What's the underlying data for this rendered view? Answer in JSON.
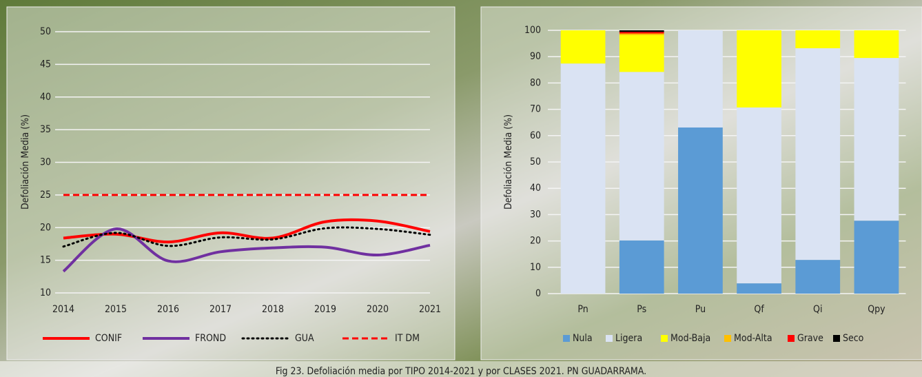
{
  "caption": "Fig 23. Defoliación media por TIPO 2014-2021 y por CLASES 2021. PN GUADARRAMA.",
  "chart_data": [
    {
      "type": "line",
      "y_label": "Defoliación Media (%)",
      "x": [
        2014,
        2015,
        2016,
        2017,
        2018,
        2019,
        2020,
        2021
      ],
      "xlim": [
        2014,
        2021
      ],
      "xticks": [
        2014,
        2015,
        2016,
        2017,
        2018,
        2019,
        2020,
        2021
      ],
      "ylim": [
        10,
        50
      ],
      "yticks": [
        10,
        15,
        20,
        25,
        30,
        35,
        40,
        45,
        50
      ],
      "grid": true,
      "series": [
        {
          "name": "CONIF",
          "color": "#ff0000",
          "style": "solid",
          "values": [
            18.4,
            19.0,
            17.8,
            19.2,
            18.4,
            20.9,
            21.0,
            19.4
          ]
        },
        {
          "name": "FROND",
          "color": "#7030a0",
          "style": "solid",
          "values": [
            13.3,
            19.8,
            14.9,
            16.3,
            16.9,
            17.0,
            15.8,
            17.3
          ]
        },
        {
          "name": "GUA",
          "color": "#000000",
          "style": "dotted",
          "values": [
            17.1,
            19.2,
            17.2,
            18.5,
            18.2,
            19.9,
            19.8,
            18.9
          ]
        },
        {
          "name": "IT DM",
          "color": "#ff0000",
          "style": "dashed",
          "values": [
            25,
            25,
            25,
            25,
            25,
            25,
            25,
            25
          ]
        }
      ]
    },
    {
      "type": "stacked_bar",
      "y_label": "Defoliación Media (%)",
      "categories": [
        "Pn",
        "Ps",
        "Pu",
        "Qf",
        "Qi",
        "Qpy"
      ],
      "ylim": [
        0,
        100
      ],
      "yticks": [
        0,
        10,
        20,
        30,
        40,
        50,
        60,
        70,
        80,
        90,
        100
      ],
      "grid": true,
      "series": [
        {
          "name": "Nula",
          "color": "#5b9bd5",
          "values": [
            0,
            20.2,
            63.1,
            3.9,
            12.8,
            27.7
          ]
        },
        {
          "name": "Ligera",
          "color": "#dae3f3",
          "values": [
            87.4,
            64.0,
            36.9,
            66.8,
            80.4,
            61.8
          ]
        },
        {
          "name": "Mod-Baja",
          "color": "#ffff00",
          "values": [
            12.6,
            14.0,
            0,
            29.3,
            6.8,
            10.5
          ]
        },
        {
          "name": "Mod-Alta",
          "color": "#ffc000",
          "values": [
            0,
            0.6,
            0,
            0,
            0,
            0
          ]
        },
        {
          "name": "Grave",
          "color": "#ff0000",
          "values": [
            0,
            0.6,
            0,
            0,
            0,
            0
          ]
        },
        {
          "name": "Seco",
          "color": "#000000",
          "values": [
            0,
            0.6,
            0,
            0,
            0,
            0
          ]
        }
      ]
    }
  ]
}
